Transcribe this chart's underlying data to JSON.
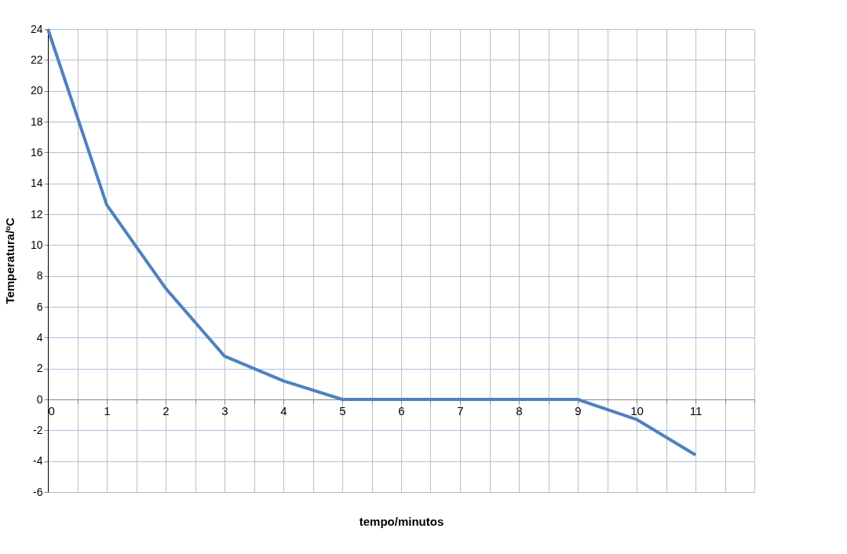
{
  "chart_data": {
    "type": "line",
    "xlabel": "tempo/minutos",
    "ylabel": "Temperatura/ºC",
    "x": [
      0,
      1,
      2,
      3,
      4,
      5,
      6,
      7,
      8,
      9,
      10,
      11
    ],
    "series": [
      {
        "color": "#4f81bd",
        "values": [
          24,
          12.6,
          7.2,
          2.8,
          1.2,
          0,
          0,
          0,
          0,
          0,
          -1.3,
          -3.6
        ]
      }
    ],
    "xlim": [
      0,
      12
    ],
    "xticks": [
      0,
      {
        "value": 0.5,
        "label": null
      },
      1,
      {
        "value": 1.5,
        "label": null
      },
      2,
      {
        "value": 2.5,
        "label": null
      },
      3,
      {
        "value": 3.5,
        "label": null
      },
      4,
      {
        "value": 4.5,
        "label": null
      },
      5,
      {
        "value": 5.5,
        "label": null
      },
      6,
      {
        "value": 6.5,
        "label": null
      },
      7,
      {
        "value": 7.5,
        "label": null
      },
      8,
      {
        "value": 8.5,
        "label": null
      },
      9,
      {
        "value": 9.5,
        "label": null
      },
      10,
      {
        "value": 10.5,
        "label": null
      },
      11,
      {
        "value": 11.5,
        "label": null
      },
      {
        "value": 12,
        "label": null
      }
    ],
    "ylim": [
      -6,
      24
    ],
    "yticks": [
      -6,
      -4,
      -2,
      0,
      2,
      4,
      6,
      8,
      10,
      12,
      14,
      16,
      18,
      20,
      22,
      24
    ],
    "grid": true,
    "marker": "none",
    "line_style": "solid"
  }
}
